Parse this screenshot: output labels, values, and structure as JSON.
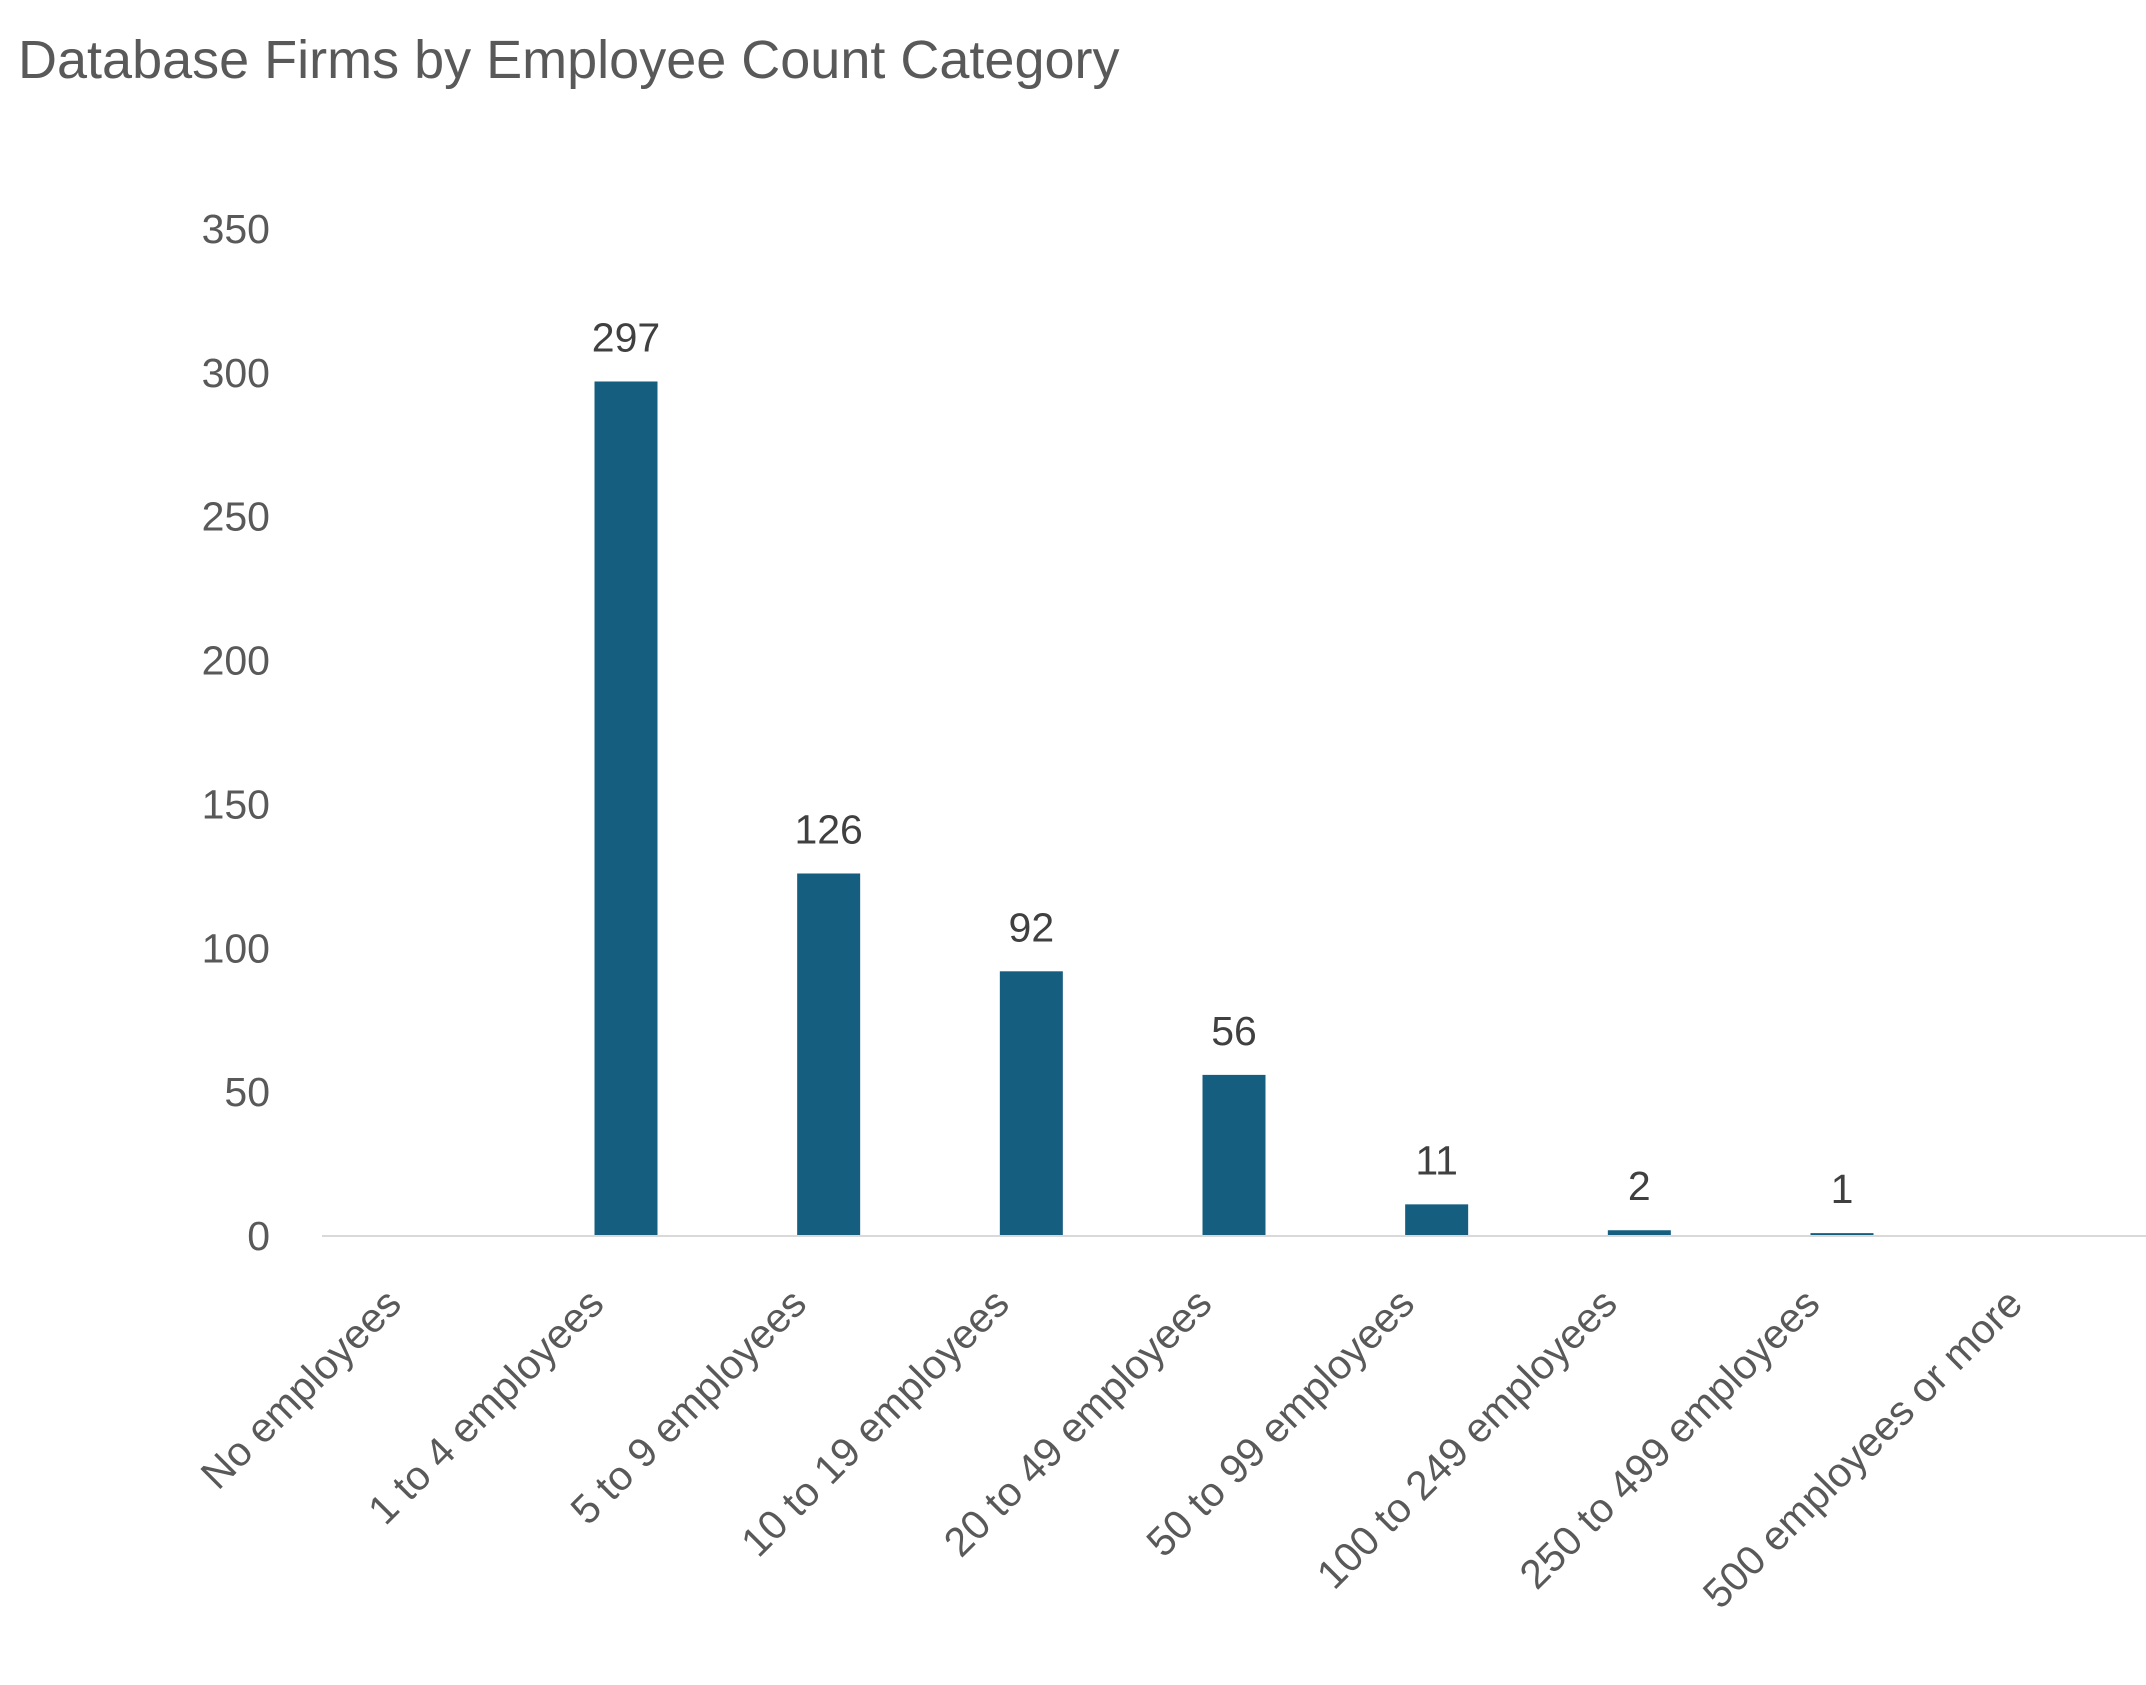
{
  "chart_data": {
    "type": "bar",
    "title": "Database Firms by Employee Count Category",
    "xlabel": "",
    "ylabel": "",
    "categories": [
      "No employees",
      "1 to 4 employees",
      "5 to 9 employees",
      "10 to 19 employees",
      "20 to 49 employees",
      "50 to 99 employees",
      "100 to 249 employees",
      "250 to 499 employees",
      "500 employees or more"
    ],
    "values": [
      0,
      297,
      126,
      92,
      56,
      11,
      2,
      1,
      0
    ],
    "data_labels": [
      "",
      "297",
      "126",
      "92",
      "56",
      "11",
      "2",
      "1",
      ""
    ],
    "ylim": [
      0,
      350
    ],
    "yticks": [
      "0",
      "50",
      "100",
      "150",
      "200",
      "250",
      "300",
      "350"
    ],
    "grid": false,
    "legend": "none",
    "colors": {
      "bar": "#165E80",
      "axis": "#D9D9D9",
      "text": "#595959"
    }
  }
}
